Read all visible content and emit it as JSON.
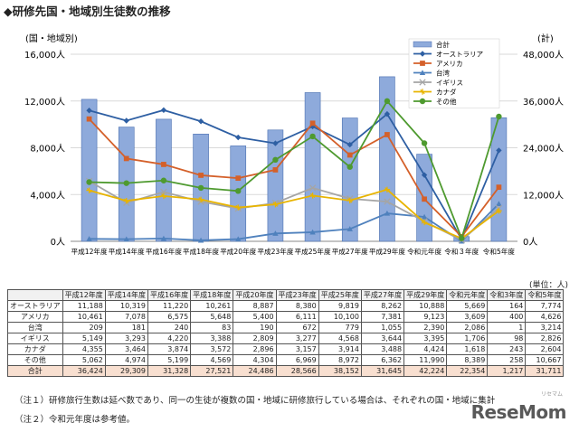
{
  "header": {
    "title": "◆研修先国・地域別生徒数の推移"
  },
  "chart_data": {
    "type": "bar",
    "left_axis_label": "(国・地域別)",
    "right_axis_label": "(計)",
    "left_ticks": [
      "0人",
      "4,000人",
      "8,000人",
      "12,000人",
      "16,000人"
    ],
    "right_ticks": [
      "0人",
      "12,000人",
      "24,000人",
      "36,000人",
      "48,000人"
    ],
    "ylim_left": [
      0,
      16000
    ],
    "ylim_right": [
      0,
      48000
    ],
    "categories": [
      "平成12年度",
      "平成14年度",
      "平成16年度",
      "平成18年度",
      "平成20年度",
      "平成23年度",
      "平成25年度",
      "平成27年度",
      "平成29年度",
      "令和元年度",
      "令和３年度",
      "令和5年度"
    ],
    "bar_series": {
      "name": "合計",
      "color": "#8eaadb",
      "values": [
        36424,
        29309,
        31328,
        27521,
        24486,
        28566,
        38152,
        31645,
        42224,
        22354,
        1217,
        31711
      ]
    },
    "series": [
      {
        "name": "オーストラリア",
        "color": "#2e5fa3",
        "marker": "diamond",
        "values": [
          11188,
          10319,
          11220,
          10261,
          8887,
          8380,
          9819,
          8262,
          10888,
          5669,
          164,
          7774
        ]
      },
      {
        "name": "アメリカ",
        "color": "#d4602a",
        "marker": "square",
        "values": [
          10461,
          7078,
          6575,
          5648,
          5400,
          6111,
          10100,
          7381,
          9123,
          3609,
          400,
          4626
        ]
      },
      {
        "name": "台湾",
        "color": "#4f81bd",
        "marker": "triangle",
        "values": [
          209,
          181,
          240,
          83,
          190,
          672,
          779,
          1055,
          2390,
          2086,
          1,
          3214
        ]
      },
      {
        "name": "イギリス",
        "color": "#a5a5a5",
        "marker": "x",
        "values": [
          5149,
          3293,
          4220,
          3388,
          2809,
          3277,
          4568,
          3644,
          3395,
          1706,
          98,
          2826
        ]
      },
      {
        "name": "カナダ",
        "color": "#e8b400",
        "marker": "star",
        "values": [
          4355,
          3464,
          3874,
          3572,
          2896,
          3157,
          3914,
          3488,
          4424,
          1618,
          243,
          2604
        ]
      },
      {
        "name": "その他",
        "color": "#4e9a2f",
        "marker": "circle",
        "values": [
          5062,
          4974,
          5199,
          4569,
          4304,
          6969,
          8972,
          6362,
          11990,
          8389,
          258,
          10667
        ]
      }
    ]
  },
  "table": {
    "unit": "(単位：人)",
    "headers": [
      "平成12年度",
      "平成14年度",
      "平成16年度",
      "平成18年度",
      "平成20年度",
      "平成23年度",
      "平成25年度",
      "平成27年度",
      "平成29年度",
      "令和元年度",
      "令和3年度",
      "令和5年度"
    ],
    "rows": [
      {
        "label": "オーストラリア",
        "values": [
          "11,188",
          "10,319",
          "11,220",
          "10,261",
          "8,887",
          "8,380",
          "9,819",
          "8,262",
          "10,888",
          "5,669",
          "164",
          "7,774"
        ]
      },
      {
        "label": "アメリカ",
        "values": [
          "10,461",
          "7,078",
          "6,575",
          "5,648",
          "5,400",
          "6,111",
          "10,100",
          "7,381",
          "9,123",
          "3,609",
          "400",
          "4,626"
        ]
      },
      {
        "label": "台湾",
        "values": [
          "209",
          "181",
          "240",
          "83",
          "190",
          "672",
          "779",
          "1,055",
          "2,390",
          "2,086",
          "1",
          "3,214"
        ]
      },
      {
        "label": "イギリス",
        "values": [
          "5,149",
          "3,293",
          "4,220",
          "3,388",
          "2,809",
          "3,277",
          "4,568",
          "3,644",
          "3,395",
          "1,706",
          "98",
          "2,826"
        ]
      },
      {
        "label": "カナダ",
        "values": [
          "4,355",
          "3,464",
          "3,874",
          "3,572",
          "2,896",
          "3,157",
          "3,914",
          "3,488",
          "4,424",
          "1,618",
          "243",
          "2,604"
        ]
      },
      {
        "label": "その他",
        "values": [
          "5,062",
          "4,974",
          "5,199",
          "4,569",
          "4,304",
          "6,969",
          "8,972",
          "6,362",
          "11,990",
          "8,389",
          "258",
          "10,667"
        ]
      }
    ],
    "total": {
      "label": "合計",
      "values": [
        "36,424",
        "29,309",
        "31,328",
        "27,521",
        "24,486",
        "28,566",
        "38,152",
        "31,645",
        "42,224",
        "22,354",
        "1,217",
        "31,711"
      ]
    }
  },
  "notes": [
    "（注１）研修旅行生数は延べ数であり、同一の生徒が複数の国・地域に研修旅行している場合は、それぞれの国・地域に集計",
    "（注２）令和元年度は参考値。"
  ],
  "logo": {
    "text": "ReseMom",
    "subtext": "リセマム"
  }
}
